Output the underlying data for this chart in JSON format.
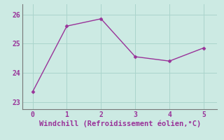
{
  "x": [
    0,
    1,
    2,
    3,
    4,
    5
  ],
  "y": [
    23.35,
    25.6,
    25.85,
    24.55,
    24.4,
    24.85
  ],
  "line_color": "#993399",
  "marker": "D",
  "marker_size": 2.5,
  "xlabel": "Windchill (Refroidissement éolien,°C)",
  "xlabel_fontsize": 7.5,
  "background_color": "#cceae3",
  "axes_background": "#cceae3",
  "grid_color": "#aad4cc",
  "tick_color": "#993399",
  "label_color": "#993399",
  "xlim": [
    -0.3,
    5.4
  ],
  "ylim": [
    22.75,
    26.35
  ],
  "yticks": [
    23,
    24,
    25,
    26
  ],
  "xticks": [
    0,
    1,
    2,
    3,
    4,
    5
  ],
  "spine_color": "#777777",
  "linewidth": 1.0
}
